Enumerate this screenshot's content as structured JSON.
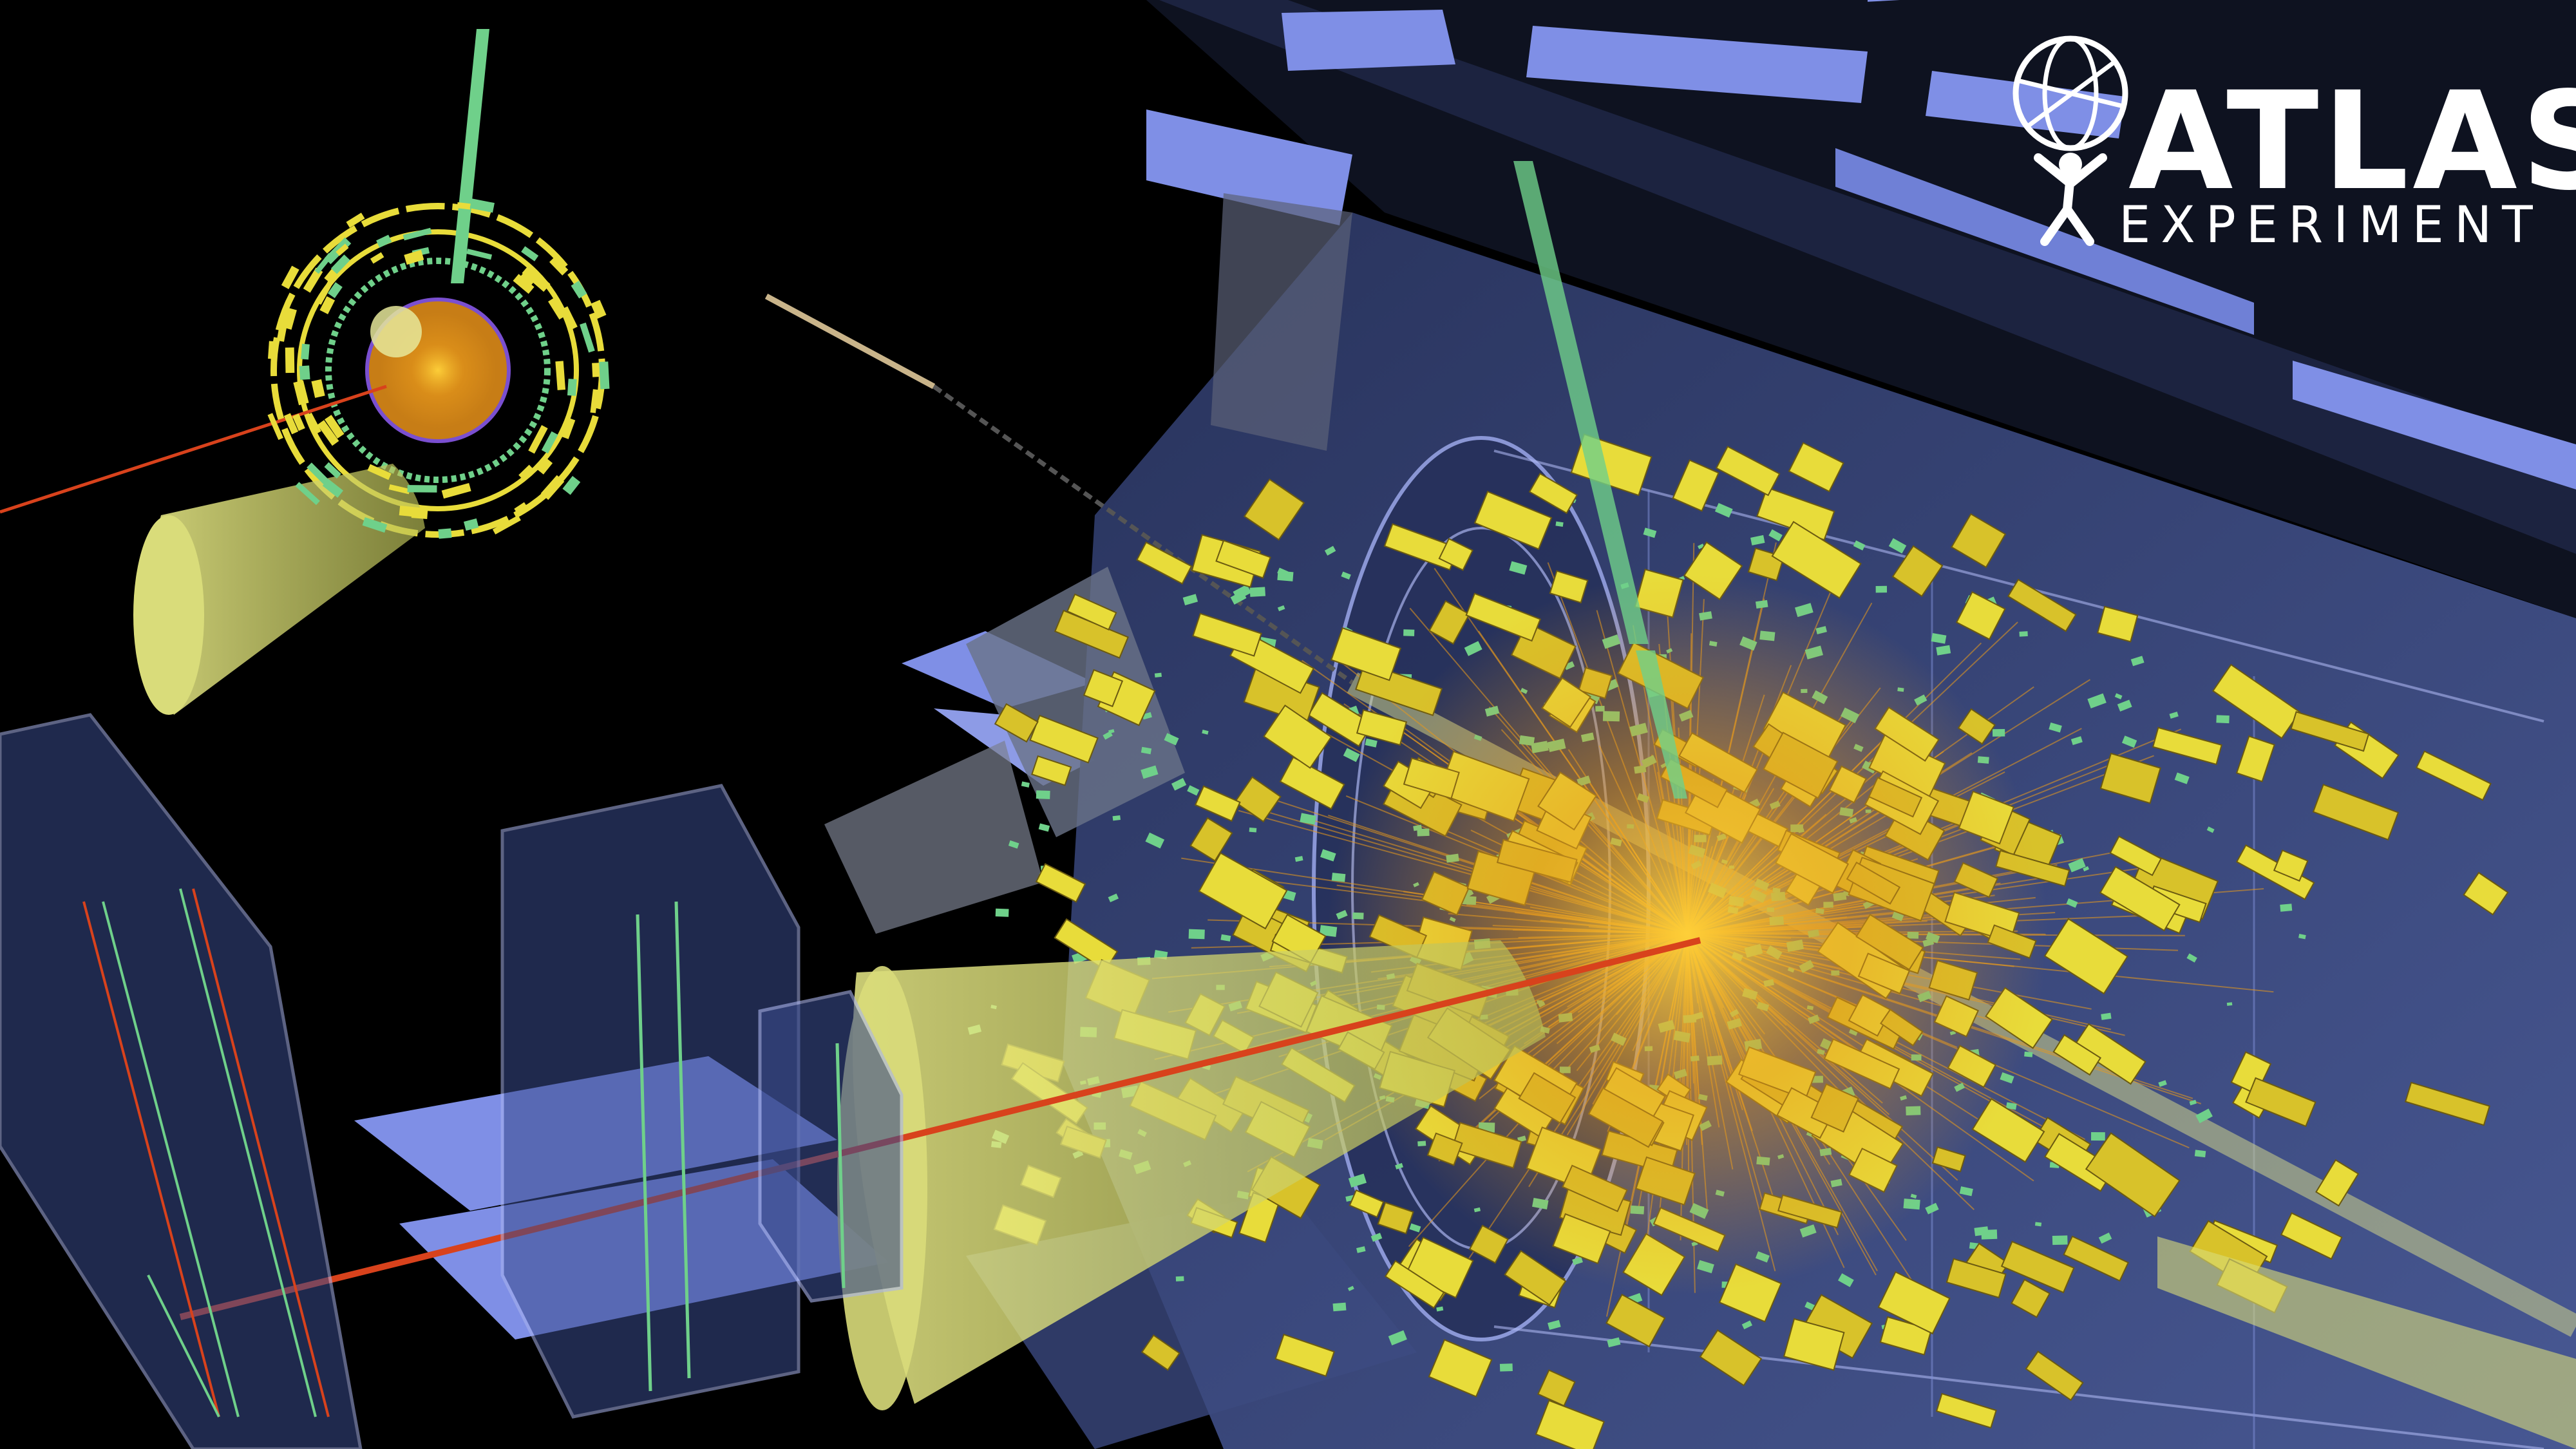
{
  "logo": {
    "title": "ATLAS",
    "subtitle": "EXPERIMENT"
  },
  "colors": {
    "background": "#000000",
    "detector_blue": "#7f8fe6",
    "detector_steel": "#3c4a7a",
    "calorimeter_yellow": "#e8dc3a",
    "track_green": "#6fd08a",
    "track_orange": "#e89a1c",
    "muon_red": "#d8421c",
    "jet_cone": "#d9dc7a"
  },
  "icons": {
    "logo": "atlas-globe-figure-icon"
  }
}
